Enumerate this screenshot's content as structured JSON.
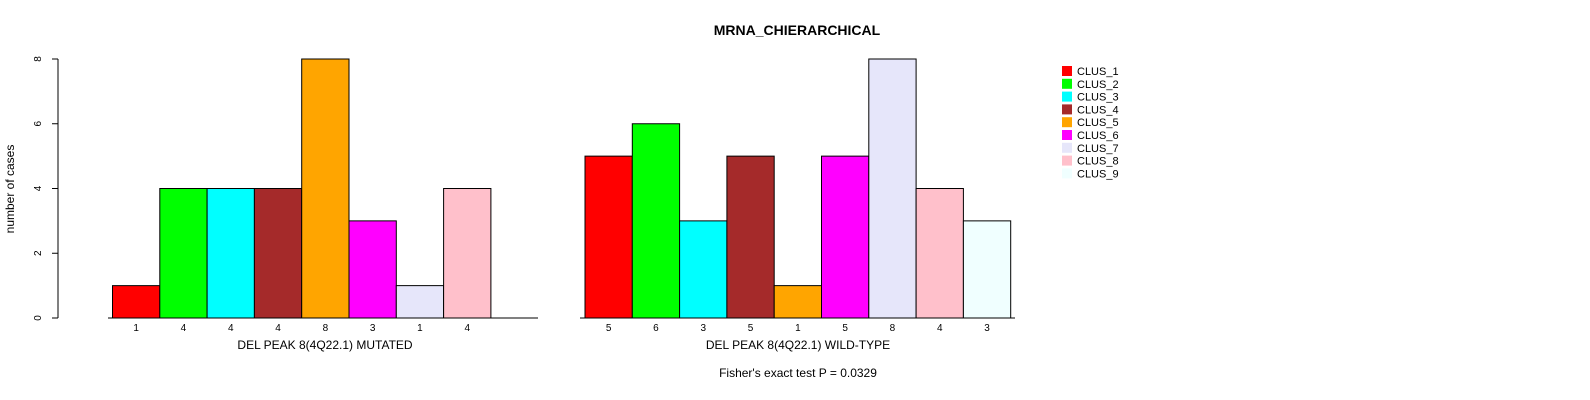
{
  "chart_data": {
    "type": "bar",
    "title": "MRNA_CHIERARCHICAL",
    "ylabel": "number of cases",
    "ylim": [
      0,
      8
    ],
    "yticks": [
      0,
      2,
      4,
      6,
      8
    ],
    "footer": "Fisher's exact test P = 0.0329",
    "clusters": [
      "CLUS_1",
      "CLUS_2",
      "CLUS_3",
      "CLUS_4",
      "CLUS_5",
      "CLUS_6",
      "CLUS_7",
      "CLUS_8",
      "CLUS_9"
    ],
    "colors": [
      "#ff0000",
      "#00ff00",
      "#00ffff",
      "#a52a2a",
      "#ffa500",
      "#ff00ff",
      "#e6e6fa",
      "#ffc0cb",
      "#f0ffff"
    ],
    "groups": [
      {
        "name": "DEL PEAK  8(4Q22.1) MUTATED",
        "values": [
          1,
          4,
          4,
          4,
          8,
          3,
          1,
          4,
          0
        ]
      },
      {
        "name": "DEL PEAK  8(4Q22.1) WILD-TYPE",
        "values": [
          5,
          6,
          3,
          5,
          1,
          5,
          8,
          4,
          3
        ]
      }
    ],
    "legend_position": "top-right"
  }
}
